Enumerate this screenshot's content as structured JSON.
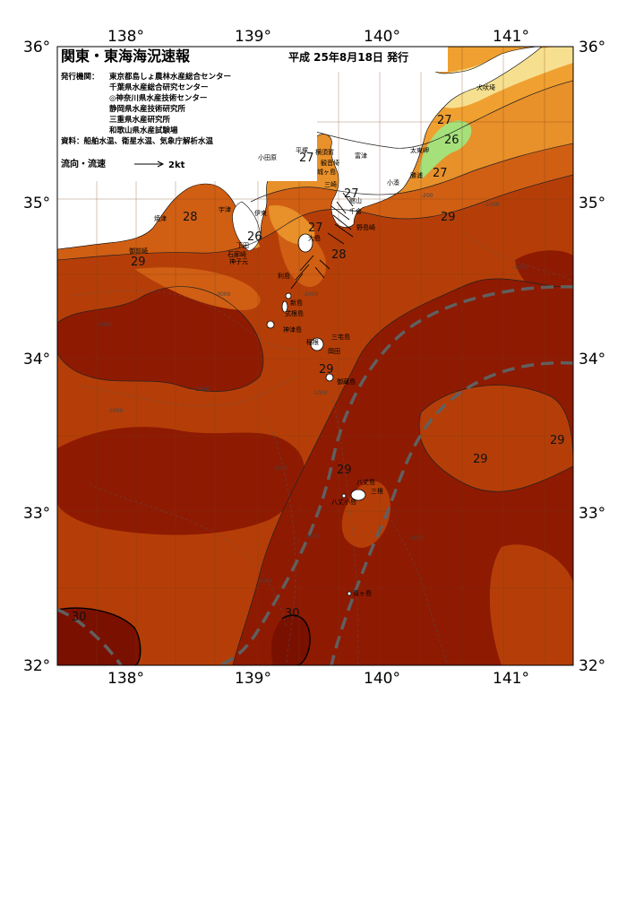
{
  "header": {
    "title": "関東・東海海況速報",
    "date": "平成 25年8月18日 発行"
  },
  "agencies": {
    "label": "発行機関：",
    "list": [
      "東京都島しょ農林水産総合センター",
      "千葉県水産総合研究センター",
      "◎神奈川県水産技術センター",
      "静岡県水産技術研究所",
      "三重県水産研究所",
      "和歌山県水産試験場"
    ]
  },
  "sources": "資料：船舶水温、衛星水温、気象庁解析水温",
  "legend": {
    "label": "流向・流速",
    "speed": "2kt"
  },
  "axes": {
    "lon_top": [
      "138°",
      "139°",
      "140°",
      "141°"
    ],
    "lon_bottom": [
      "138°",
      "139°",
      "140°",
      "141°"
    ],
    "lat_left": [
      "36°",
      "35°",
      "34°",
      "33°",
      "32°"
    ],
    "lat_right": [
      "36°",
      "35°",
      "34°",
      "33°",
      "32°"
    ]
  },
  "isotherm_labels": [
    "27",
    "26",
    "27",
    "27",
    "27",
    "28",
    "26",
    "27",
    "28",
    "29",
    "29",
    "29",
    "29",
    "29",
    "29",
    "29",
    "30",
    "30"
  ],
  "places": {
    "inubozaki": "犬吠埼",
    "taitomisaki": "太東岬",
    "katsuura": "勝浦",
    "kominato": "小湊",
    "tateyama": "館山",
    "chikura": "千倉",
    "nojimazaki": "野島崎",
    "futtsu": "富津",
    "hiratsuka": "平塚",
    "yokosuka": "横須賀",
    "kannonzaki": "観音埼",
    "jogashima": "城ヶ島",
    "miura": "三崎",
    "odawara": "小田原",
    "izu": "伊東",
    "yaizu": "焼津",
    "utsu": "宇津",
    "omaezaki": "御前崎",
    "iro": "石廊崎",
    "shimoda": "下田",
    "mikomoto": "神子元",
    "toshima": "利島",
    "niijima": "新島",
    "shikinejima": "式根島",
    "kozushima": "神津島",
    "miyake": "三宅島",
    "mikurajima": "御蔵島",
    "hachijo": "八丈島",
    "hachijo2": "三根",
    "kojima": "八丈小島",
    "aogashima": "青ヶ島",
    "oshima": "大島",
    "inamba": "稲根",
    "okata": "岡田",
    "chigasaki": "洲崎",
    "mera": "布良"
  },
  "depth_labels": [
    "-200",
    "-1000",
    "-2000",
    "-3000",
    "-1000",
    "-2000",
    "-1000",
    "-1000",
    "-1000",
    "-1000",
    "-2000",
    "-3000",
    "-1000"
  ],
  "colors": {
    "temp_26": "#f0a030",
    "temp_27": "#e8902a",
    "temp_28": "#d05f14",
    "temp_29": "#b53e08",
    "temp_30": "#8e1a02",
    "cold_green": "#a6e07a",
    "cold_yellow": "#f6e090",
    "kuroshio_line": "#606060"
  }
}
